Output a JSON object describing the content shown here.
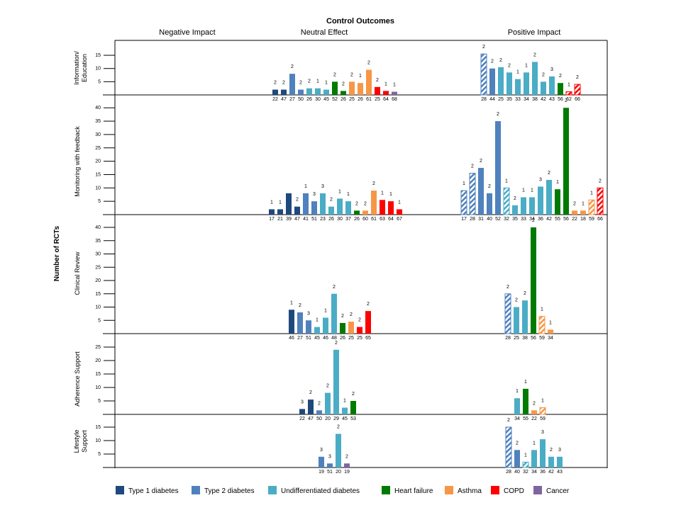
{
  "chart_data": {
    "type": "bar",
    "title": "Control Outcomes",
    "ylabel": "Number of RCTs",
    "columns": [
      "Negative Impact",
      "Neutral Effect",
      "Positive Impact"
    ],
    "legend": {
      "placement": "bottom",
      "entries": [
        {
          "key": "t1",
          "label": "Type 1 diabetes",
          "color": "#1F497D"
        },
        {
          "key": "t2",
          "label": "Type 2 diabetes",
          "color": "#4F81BD"
        },
        {
          "key": "ud",
          "label": "Undifferentiated diabetes",
          "color": "#4BACC6"
        },
        {
          "key": "hf",
          "label": "Heart failure",
          "color": "#007A00"
        },
        {
          "key": "as",
          "label": "Asthma",
          "color": "#F79646"
        },
        {
          "key": "co",
          "label": "COPD",
          "color": "#FF0000"
        },
        {
          "key": "ca",
          "label": "Cancer",
          "color": "#8064A2"
        }
      ]
    },
    "note": "Hatched bars shown with diagonal stripes; bar x labels are quality scores, data labels above bars are counts.",
    "panels": [
      {
        "label": "Information/ Education",
        "label_lines": [
          "Information/",
          "Education"
        ],
        "ylim": [
          0,
          20
        ],
        "yticks": [
          5,
          10,
          15
        ],
        "neutral": [
          {
            "x": "22",
            "v": 2,
            "d": "2",
            "c": "t1"
          },
          {
            "x": "47",
            "v": 2,
            "d": "2",
            "c": "t1"
          },
          {
            "x": "27",
            "v": 8,
            "d": "2",
            "c": "t2"
          },
          {
            "x": "50",
            "v": 2,
            "d": "2",
            "c": "t2"
          },
          {
            "x": "26",
            "v": 2.5,
            "d": "2",
            "c": "ud"
          },
          {
            "x": "30",
            "v": 2.5,
            "d": "1",
            "c": "ud"
          },
          {
            "x": "45",
            "v": 2,
            "d": "1",
            "c": "ud"
          },
          {
            "x": "52",
            "v": 5,
            "d": "2",
            "c": "hf"
          },
          {
            "x": "26",
            "v": 1.5,
            "d": "2",
            "c": "hf"
          },
          {
            "x": "25",
            "v": 5,
            "d": "2",
            "c": "as"
          },
          {
            "x": "26",
            "v": 4.5,
            "d": "1",
            "c": "as"
          },
          {
            "x": "61",
            "v": 9.5,
            "d": "2",
            "c": "as"
          },
          {
            "x": "25",
            "v": 3,
            "d": "2",
            "c": "co"
          },
          {
            "x": "64",
            "v": 1.5,
            "d": "1",
            "c": "co"
          },
          {
            "x": "68",
            "v": 1.2,
            "d": "1",
            "c": "ca"
          }
        ],
        "positive": [
          {
            "x": "28",
            "v": 15.5,
            "d": "2",
            "c": "t2",
            "h": true
          },
          {
            "x": "44",
            "v": 10,
            "d": "2",
            "c": "t2"
          },
          {
            "x": "25",
            "v": 10.5,
            "d": "2",
            "c": "ud"
          },
          {
            "x": "35",
            "v": 8.5,
            "d": "2",
            "c": "ud"
          },
          {
            "x": "33",
            "v": 6,
            "d": "1",
            "c": "ud"
          },
          {
            "x": "34",
            "v": 8.5,
            "d": "1",
            "c": "ud"
          },
          {
            "x": "38",
            "v": 12.5,
            "d": "2",
            "c": "ud"
          },
          {
            "x": "42",
            "v": 5,
            "d": "2",
            "c": "ud"
          },
          {
            "x": "43",
            "v": 7,
            "d": "3",
            "c": "ud"
          },
          {
            "x": "56",
            "v": 4.5,
            "d": "2",
            "c": "hf"
          },
          {
            "x": "62",
            "v": 1.2,
            "d": "1",
            "c": "co",
            "h": true
          },
          {
            "x": "66",
            "v": 4,
            "d": "2",
            "c": "co",
            "h": true
          }
        ]
      },
      {
        "label": "Monitoring with feedback",
        "label_lines": [
          "Monitoring with feedback"
        ],
        "ylim": [
          0,
          44
        ],
        "yticks": [
          5,
          10,
          15,
          20,
          25,
          30,
          35,
          40
        ],
        "neutral": [
          {
            "x": "17",
            "v": 2,
            "d": "1",
            "c": "t1"
          },
          {
            "x": "21",
            "v": 2,
            "d": "1",
            "c": "t1"
          },
          {
            "x": "39",
            "v": 8,
            "d": "",
            "c": "t1"
          },
          {
            "x": "47",
            "v": 3,
            "d": "2",
            "c": "t1"
          },
          {
            "x": "41",
            "v": 8,
            "d": "1",
            "c": "t2"
          },
          {
            "x": "51",
            "v": 5,
            "d": "3",
            "c": "t2"
          },
          {
            "x": "23",
            "v": 8,
            "d": "3",
            "c": "ud"
          },
          {
            "x": "26",
            "v": 3,
            "d": "2",
            "c": "ud"
          },
          {
            "x": "30",
            "v": 6,
            "d": "1",
            "c": "ud"
          },
          {
            "x": "37",
            "v": 5,
            "d": "1",
            "c": "ud"
          },
          {
            "x": "26",
            "v": 1.5,
            "d": "2",
            "c": "hf"
          },
          {
            "x": "60",
            "v": 1.5,
            "d": "2",
            "c": "as"
          },
          {
            "x": "61",
            "v": 9,
            "d": "2",
            "c": "as"
          },
          {
            "x": "63",
            "v": 5.5,
            "d": "1",
            "c": "co"
          },
          {
            "x": "64",
            "v": 5,
            "d": "1",
            "c": "co"
          },
          {
            "x": "67",
            "v": 2,
            "d": "1",
            "c": "co"
          }
        ],
        "positive": [
          {
            "x": "17",
            "v": 9,
            "d": "1",
            "c": "t2",
            "h": true
          },
          {
            "x": "28",
            "v": 15.5,
            "d": "2",
            "c": "t2",
            "h": true
          },
          {
            "x": "31",
            "v": 17.5,
            "d": "2",
            "c": "t2"
          },
          {
            "x": "40",
            "v": 8,
            "d": "2",
            "c": "t2"
          },
          {
            "x": "52",
            "v": 35,
            "d": "2",
            "c": "t2"
          },
          {
            "x": "32",
            "v": 10,
            "d": "1",
            "c": "ud",
            "h": true
          },
          {
            "x": "35",
            "v": 3.5,
            "d": "2",
            "c": "ud"
          },
          {
            "x": "33",
            "v": 6.5,
            "d": "1",
            "c": "ud"
          },
          {
            "x": "34",
            "v": 6.5,
            "d": "1",
            "c": "ud"
          },
          {
            "x": "36",
            "v": 10.5,
            "d": "3",
            "c": "ud"
          },
          {
            "x": "42",
            "v": 13,
            "d": "2",
            "c": "ud"
          },
          {
            "x": "55",
            "v": 9.5,
            "d": "1",
            "c": "hf"
          },
          {
            "x": "56",
            "v": 40,
            "d": "2",
            "c": "hf"
          },
          {
            "x": "22",
            "v": 1.5,
            "d": "2",
            "c": "as"
          },
          {
            "x": "18",
            "v": 1.5,
            "d": "1",
            "c": "as"
          },
          {
            "x": "59",
            "v": 5.5,
            "d": "1",
            "c": "as",
            "h": true
          },
          {
            "x": "66",
            "v": 10,
            "d": "2",
            "c": "co",
            "h": true
          }
        ]
      },
      {
        "label": "Clinical Review",
        "label_lines": [
          "Clinical Review"
        ],
        "ylim": [
          0,
          44
        ],
        "yticks": [
          5,
          10,
          15,
          20,
          25,
          30,
          35,
          40
        ],
        "neutral": [
          {
            "x": "46",
            "v": 9,
            "d": "1",
            "c": "t1"
          },
          {
            "x": "27",
            "v": 8,
            "d": "2",
            "c": "t2"
          },
          {
            "x": "51",
            "v": 5,
            "d": "3",
            "c": "t2"
          },
          {
            "x": "45",
            "v": 2.5,
            "d": "1",
            "c": "ud"
          },
          {
            "x": "46",
            "v": 6,
            "d": "1",
            "c": "ud"
          },
          {
            "x": "48",
            "v": 15,
            "d": "2",
            "c": "ud"
          },
          {
            "x": "26",
            "v": 4,
            "d": "2",
            "c": "hf"
          },
          {
            "x": "25",
            "v": 4.5,
            "d": "2",
            "c": "as"
          },
          {
            "x": "25",
            "v": 2.5,
            "d": "2",
            "c": "co"
          },
          {
            "x": "65",
            "v": 8.5,
            "d": "2",
            "c": "co"
          }
        ],
        "positive": [
          {
            "x": "28",
            "v": 15,
            "d": "2",
            "c": "t2",
            "h": true
          },
          {
            "x": "25",
            "v": 10,
            "d": "2",
            "c": "ud"
          },
          {
            "x": "38",
            "v": 12.5,
            "d": "2",
            "c": "ud"
          },
          {
            "x": "56",
            "v": 40,
            "d": "2",
            "c": "hf"
          },
          {
            "x": "59",
            "v": 6.5,
            "d": "1",
            "c": "as",
            "h": true
          },
          {
            "x": "34",
            "v": 1.5,
            "d": "1",
            "c": "as"
          }
        ]
      },
      {
        "label": "Adherence Support",
        "label_lines": [
          "Adherence Support"
        ],
        "ylim": [
          0,
          27
        ],
        "yticks": [
          5,
          10,
          15,
          20,
          25
        ],
        "neutral": [
          {
            "x": "22",
            "v": 2,
            "d": "3",
            "c": "t1"
          },
          {
            "x": "47",
            "v": 5.5,
            "d": "2",
            "c": "t1"
          },
          {
            "x": "50",
            "v": 1.5,
            "d": "2",
            "c": "t2"
          },
          {
            "x": "20",
            "v": 8,
            "d": "2",
            "c": "ud"
          },
          {
            "x": "29",
            "v": 24,
            "d": "2",
            "c": "ud"
          },
          {
            "x": "45",
            "v": 2.5,
            "d": "1",
            "c": "ud"
          },
          {
            "x": "53",
            "v": 5,
            "d": "2",
            "c": "hf"
          }
        ],
        "positive": [
          {
            "x": "34",
            "v": 6,
            "d": "1",
            "c": "ud"
          },
          {
            "x": "55",
            "v": 9.5,
            "d": "1",
            "c": "hf"
          },
          {
            "x": "22",
            "v": 1.5,
            "d": "2",
            "c": "as"
          },
          {
            "x": "59",
            "v": 2.5,
            "d": "1",
            "c": "as",
            "h": true
          }
        ]
      },
      {
        "label": "Lifestyle Support",
        "label_lines": [
          "Lifestyle",
          "Support"
        ],
        "ylim": [
          0,
          18
        ],
        "yticks": [
          5,
          10,
          15
        ],
        "neutral": [
          {
            "x": "19",
            "v": 4,
            "d": "3",
            "c": "t2"
          },
          {
            "x": "51",
            "v": 1.5,
            "d": "3",
            "c": "t2"
          },
          {
            "x": "20",
            "v": 12.5,
            "d": "2",
            "c": "ud"
          },
          {
            "x": "19",
            "v": 1.5,
            "d": "2",
            "c": "ca"
          }
        ],
        "positive": [
          {
            "x": "28",
            "v": 15,
            "d": "2",
            "c": "t2",
            "h": true
          },
          {
            "x": "40",
            "v": 6.5,
            "d": "2",
            "c": "t2"
          },
          {
            "x": "32",
            "v": 2,
            "d": "1",
            "c": "ud",
            "h": true
          },
          {
            "x": "34",
            "v": 6.5,
            "d": "1",
            "c": "ud"
          },
          {
            "x": "36",
            "v": 10.5,
            "d": "3",
            "c": "ud"
          },
          {
            "x": "42",
            "v": 4,
            "d": "2",
            "c": "ud"
          },
          {
            "x": "43",
            "v": 4,
            "d": "3",
            "c": "ud"
          }
        ]
      }
    ]
  }
}
